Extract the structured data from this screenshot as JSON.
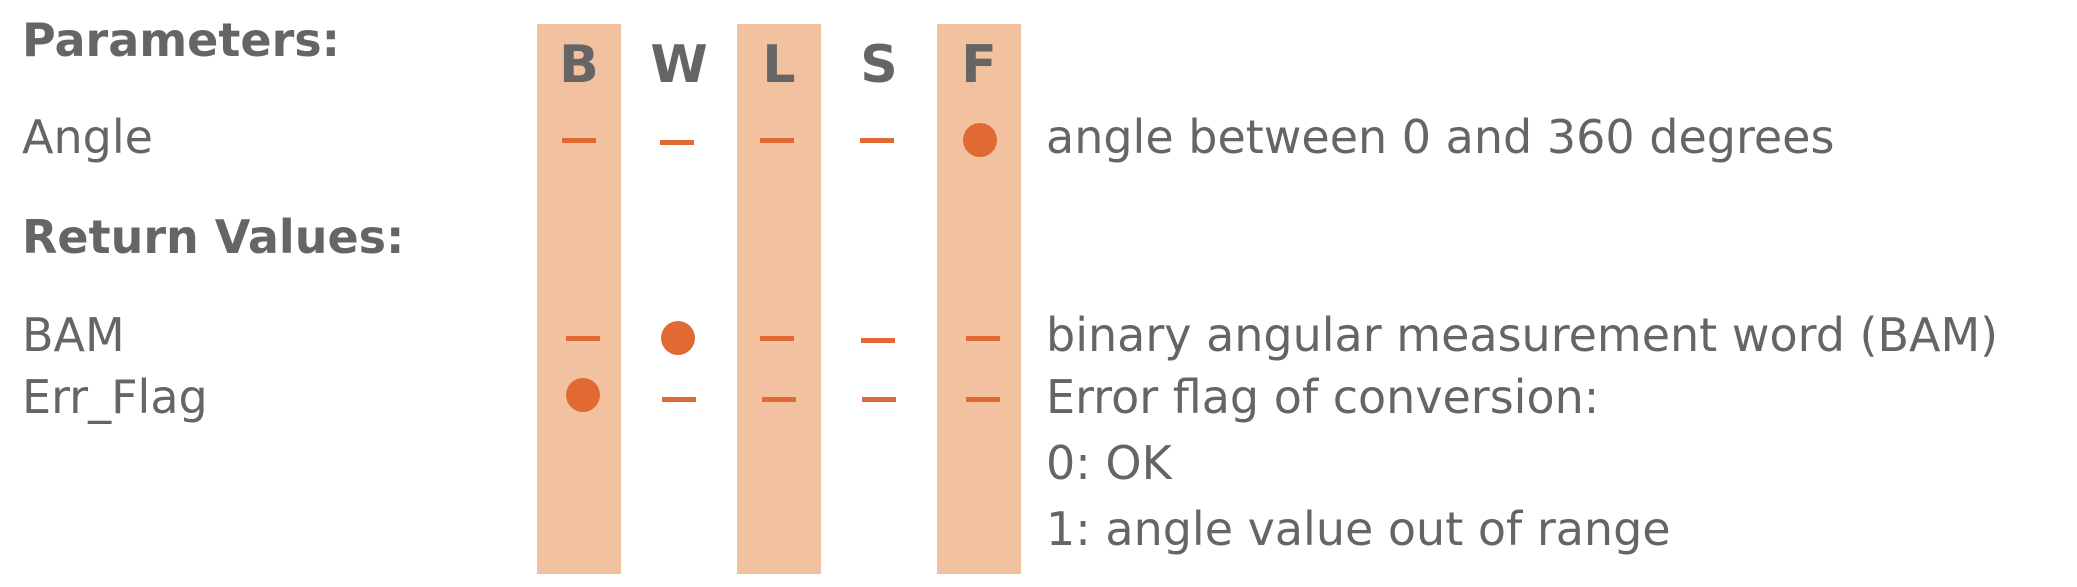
{
  "columns": [
    {
      "key": "B",
      "label": "B",
      "highlighted": true
    },
    {
      "key": "W",
      "label": "W",
      "highlighted": false
    },
    {
      "key": "L",
      "label": "L",
      "highlighted": true
    },
    {
      "key": "S",
      "label": "S",
      "highlighted": false
    },
    {
      "key": "F",
      "label": "F",
      "highlighted": true
    }
  ],
  "parameters": {
    "heading": "Parameters:",
    "rows": [
      {
        "name": "Angle",
        "description": "angle between 0 and 360 degrees",
        "marks": {
          "B": "dash",
          "W": "dash",
          "L": "dash",
          "S": "dash",
          "F": "dot"
        }
      }
    ]
  },
  "return_values": {
    "heading": "Return Values:",
    "rows": [
      {
        "name": "BAM",
        "description": "binary angular measurement word (BAM)",
        "marks": {
          "B": "dash",
          "W": "dot",
          "L": "dash",
          "S": "dash",
          "F": "dash"
        }
      },
      {
        "name": "Err_Flag",
        "description": "Error flag of conversion:",
        "marks": {
          "B": "dot",
          "W": "dash",
          "L": "dash",
          "S": "dash",
          "F": "dash"
        },
        "extra_lines": [
          "0: OK",
          "1: angle value out of range"
        ]
      }
    ]
  },
  "colors": {
    "band": "#f2c19f",
    "marker": "#e06a32",
    "text": "#656565"
  }
}
